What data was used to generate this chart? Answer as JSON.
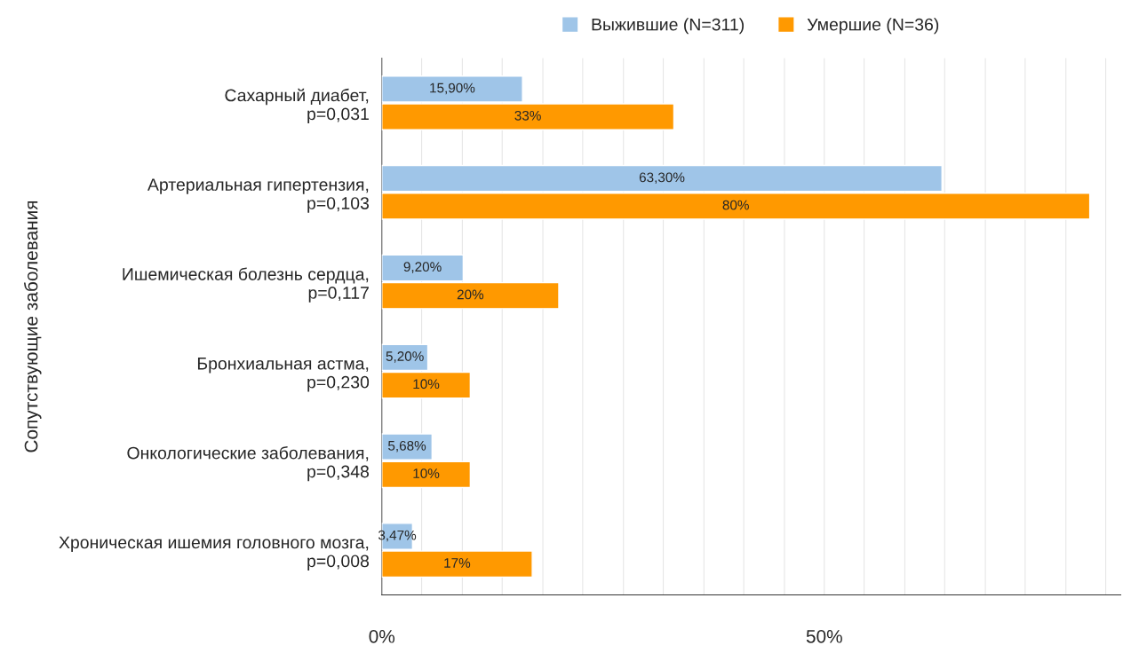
{
  "chart_data": {
    "type": "bar",
    "orientation": "horizontal",
    "ylabel": "Сопутствующие заболевания",
    "categories": [
      "Сахарный диабет,\np=0,031",
      "Артериальная гипертензия,\np=0,103",
      "Ишемическая болезнь сердца,\np=0,117",
      "Бронхиальная астма,\np=0,230",
      "Онкологические заболевания,\np=0,348",
      "Хроническая ишемия головного мозга,\np=0,008"
    ],
    "series": [
      {
        "name": "Выжившие (N=311)",
        "color": "#9fc5e8",
        "values": [
          15.9,
          63.3,
          9.2,
          5.2,
          5.68,
          3.47
        ],
        "value_labels": [
          "15,90%",
          "63,30%",
          "9,20%",
          "5,20%",
          "5,68%",
          "3,47%"
        ]
      },
      {
        "name": "Умершие (N=36)",
        "color": "#ff9900",
        "values": [
          33,
          80,
          20,
          10,
          10,
          17
        ],
        "value_labels": [
          "33%",
          "80%",
          "20%",
          "10%",
          "10%",
          "17%"
        ]
      }
    ],
    "xlim": [
      0,
      83.5
    ],
    "xticks": [
      {
        "value": 0,
        "label": "0%"
      },
      {
        "value": 4.5,
        "label": null
      },
      {
        "value": 9.1,
        "label": null
      },
      {
        "value": 13.6,
        "label": null
      },
      {
        "value": 18.2,
        "label": null
      },
      {
        "value": 22.7,
        "label": null
      },
      {
        "value": 27.3,
        "label": null
      },
      {
        "value": 31.8,
        "label": null
      },
      {
        "value": 36.4,
        "label": null
      },
      {
        "value": 40.9,
        "label": null
      },
      {
        "value": 45.5,
        "label": null
      },
      {
        "value": 50,
        "label": "50%"
      },
      {
        "value": 54.5,
        "label": null
      },
      {
        "value": 59.1,
        "label": null
      },
      {
        "value": 63.6,
        "label": null
      },
      {
        "value": 68.2,
        "label": null
      },
      {
        "value": 72.7,
        "label": null
      },
      {
        "value": 77.3,
        "label": null
      },
      {
        "value": 81.8,
        "label": null
      }
    ],
    "grid": "x",
    "legend": "top"
  }
}
